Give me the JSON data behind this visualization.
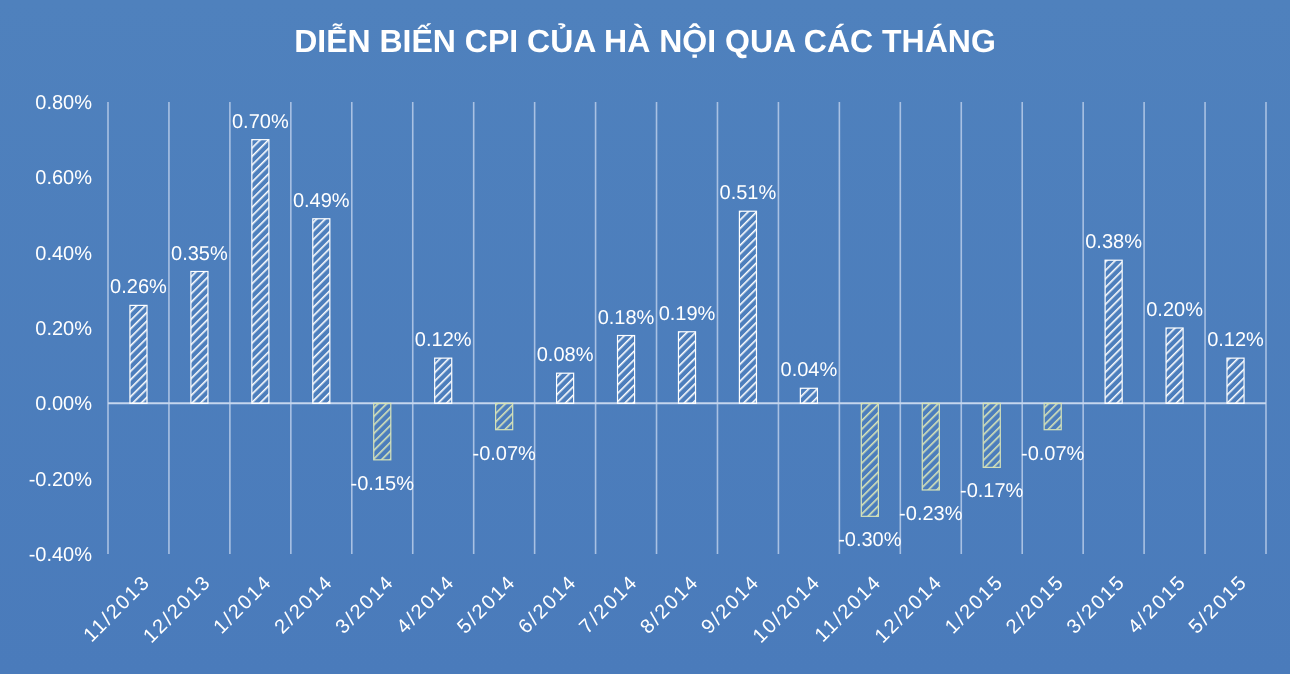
{
  "chart_data": {
    "type": "bar",
    "title": "DIỄN BIẾN CPI CỦA HÀ NỘI QUA CÁC THÁNG",
    "categories": [
      "11/2013",
      "12/2013",
      "1/2014",
      "2/2014",
      "3/2014",
      "4/2014",
      "5/2014",
      "6/2014",
      "7/2014",
      "8/2014",
      "9/2014",
      "10/2014",
      "11/2014",
      "12/2014",
      "1/2015",
      "2/2015",
      "3/2015",
      "4/2015",
      "5/2015"
    ],
    "values": [
      0.26,
      0.35,
      0.7,
      0.49,
      -0.15,
      0.12,
      -0.07,
      0.08,
      0.18,
      0.19,
      0.51,
      0.04,
      -0.3,
      -0.23,
      -0.17,
      -0.07,
      0.38,
      0.2,
      0.12
    ],
    "colors": [
      "#ffffff",
      "#ffffff",
      "#ffffff",
      "#ffffff",
      "#d8e4b8",
      "#ffffff",
      "#d8e4b8",
      "#ffffff",
      "#ffffff",
      "#ffffff",
      "#ffffff",
      "#ffffff",
      "#d8e4b8",
      "#d8e4b8",
      "#d8e4b8",
      "#d8e4b8",
      "#ffffff",
      "#ffffff",
      "#ffffff"
    ],
    "value_labels": [
      "0.26%",
      "0.35%",
      "0.70%",
      "0.49%",
      "-0.15%",
      "0.12%",
      "-0.07%",
      "0.08%",
      "0.18%",
      "0.19%",
      "0.51%",
      "0.04%",
      "-0.30%",
      "-0.23%",
      "-0.17%",
      "-0.07%",
      "0.38%",
      "0.20%",
      "0.12%"
    ],
    "ylim": [
      -0.4,
      0.8
    ],
    "yticks": [
      {
        "value": -0.4,
        "label": "-0.40%"
      },
      {
        "value": -0.2,
        "label": "-0.20%"
      },
      {
        "value": 0,
        "label": "0.00%"
      },
      {
        "value": 0.2,
        "label": "0.20%"
      },
      {
        "value": 0.4,
        "label": "0.40%"
      },
      {
        "value": 0.6,
        "label": "0.60%"
      },
      {
        "value": 0.8,
        "label": "0.80%"
      }
    ],
    "grid": "x",
    "ref_lines": [
      {
        "axis": "y",
        "value": 0,
        "color": "#c5d6ee"
      }
    ]
  }
}
